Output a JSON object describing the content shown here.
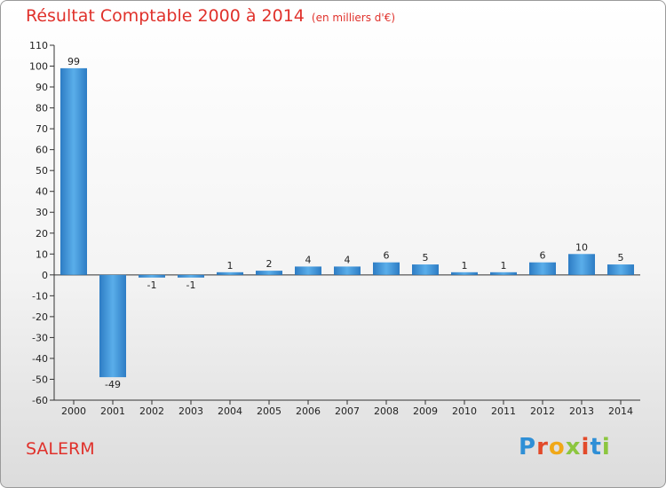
{
  "chart_data": {
    "type": "bar",
    "title": "Résultat Comptable 2000 à 2014",
    "subtitle": "(en milliers d'€)",
    "categories": [
      "2000",
      "2001",
      "2002",
      "2003",
      "2004",
      "2005",
      "2006",
      "2007",
      "2008",
      "2009",
      "2010",
      "2011",
      "2012",
      "2013",
      "2014"
    ],
    "values": [
      99,
      -49,
      -1,
      -1,
      1,
      2,
      4,
      4,
      6,
      5,
      1,
      1,
      6,
      10,
      5
    ],
    "labels": [
      "99",
      "-49",
      "-1",
      "-1",
      "1",
      "2",
      "4",
      "4",
      "6",
      "5",
      "1",
      "1",
      "6",
      "10",
      "5"
    ],
    "ylim": [
      -60,
      110
    ],
    "yticks": [
      -60,
      -50,
      -40,
      -30,
      -20,
      -10,
      0,
      10,
      20,
      30,
      40,
      50,
      60,
      70,
      80,
      90,
      100,
      110
    ],
    "xlabel": "",
    "ylabel": "",
    "grid": false,
    "bar_color": "#3a8fd6"
  },
  "footer": {
    "town": "SALERM"
  },
  "logo": {
    "p": "P",
    "r": "r",
    "o": "o",
    "x": "x",
    "i": "i",
    "t": "t",
    "i2": "i"
  }
}
